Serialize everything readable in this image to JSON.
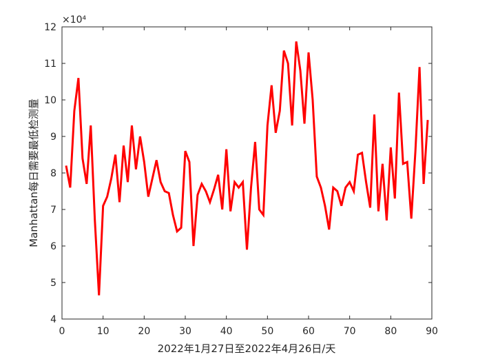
{
  "chart_data": {
    "type": "line",
    "title": "",
    "xlabel": "2022年1月27日至2022年4月26日/天",
    "ylabel": "Manhattan每日需要最低检测量",
    "exponent_label": "×10⁴",
    "xlim": [
      0,
      90
    ],
    "ylim": [
      4,
      12
    ],
    "xticks": [
      0,
      10,
      20,
      30,
      40,
      50,
      60,
      70,
      80,
      90
    ],
    "yticks": [
      4,
      5,
      6,
      7,
      8,
      9,
      10,
      11,
      12
    ],
    "grid": false,
    "line_color": "#ff0000",
    "series": [
      {
        "x": [
          1,
          2,
          3,
          4,
          5,
          6,
          7,
          8,
          9,
          10,
          11,
          12,
          13,
          14,
          15,
          16,
          17,
          18,
          19,
          20,
          21,
          22,
          23,
          24,
          25,
          26,
          27,
          28,
          29,
          30,
          31,
          32,
          33,
          34,
          35,
          36,
          37,
          38,
          39,
          40,
          41,
          42,
          43,
          44,
          45,
          46,
          47,
          48,
          49,
          50,
          51,
          52,
          53,
          54,
          55,
          56,
          57,
          58,
          59,
          60,
          61,
          62,
          63,
          64,
          65,
          66,
          67,
          68,
          69,
          70,
          71,
          72,
          73,
          74,
          75,
          76,
          77,
          78,
          79,
          80,
          81,
          82,
          83,
          84,
          85,
          86,
          87,
          88,
          89
        ],
        "values": [
          8.2,
          7.6,
          9.7,
          10.6,
          8.4,
          7.7,
          9.3,
          6.7,
          4.65,
          7.1,
          7.35,
          7.85,
          8.5,
          7.2,
          8.75,
          7.75,
          9.3,
          8.1,
          9.0,
          8.3,
          7.35,
          7.85,
          8.35,
          7.75,
          7.5,
          7.45,
          6.85,
          6.4,
          6.5,
          8.6,
          8.3,
          6.0,
          7.4,
          7.7,
          7.5,
          7.2,
          7.55,
          7.95,
          7.0,
          8.65,
          6.95,
          7.75,
          7.6,
          7.75,
          5.9,
          7.6,
          8.85,
          7.0,
          6.85,
          9.3,
          10.4,
          9.1,
          9.7,
          11.35,
          11.0,
          9.3,
          11.6,
          10.8,
          9.35,
          11.3,
          10.0,
          7.9,
          7.6,
          7.1,
          6.45,
          7.6,
          7.5,
          7.1,
          7.6,
          7.75,
          7.5,
          8.5,
          8.55,
          7.75,
          7.05,
          9.6,
          6.95,
          8.25,
          6.7,
          8.7,
          7.3,
          10.2,
          8.25,
          8.3,
          6.75,
          8.6,
          10.9,
          7.7,
          9.45
        ]
      }
    ]
  }
}
